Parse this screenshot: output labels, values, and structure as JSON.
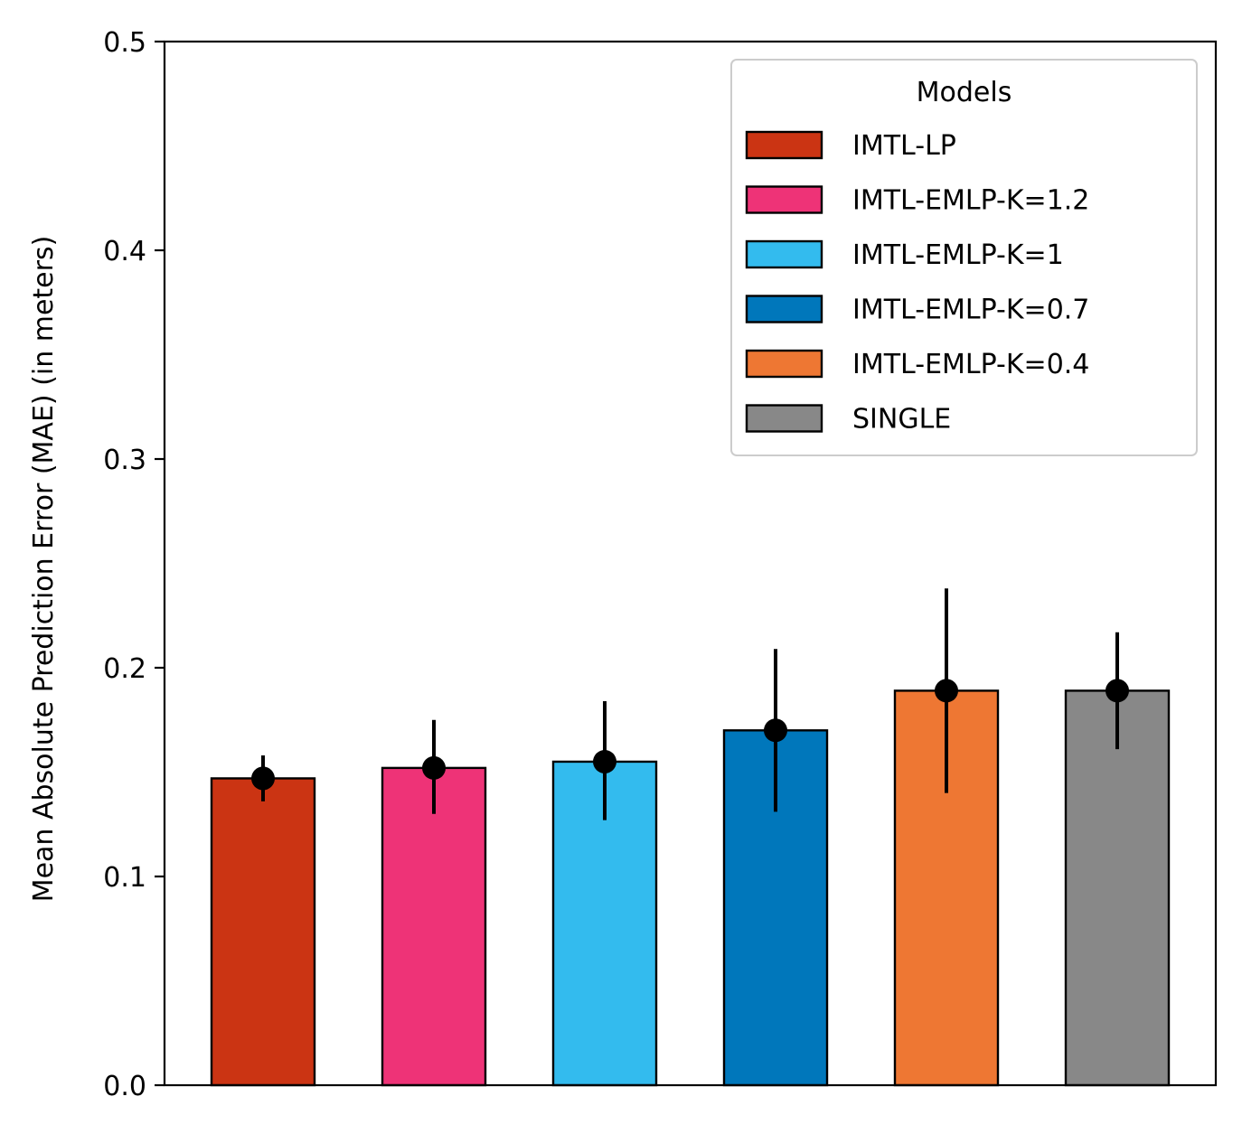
{
  "chart_data": {
    "type": "bar",
    "title": "",
    "xlabel": "",
    "ylabel": "Mean Absolute Prediction Error (MAE) (in meters)",
    "ylim": [
      0,
      0.5
    ],
    "yticks": [
      0.0,
      0.1,
      0.2,
      0.3,
      0.4,
      0.5
    ],
    "ytick_labels": [
      "0.0",
      "0.1",
      "0.2",
      "0.3",
      "0.4",
      "0.5"
    ],
    "grid": false,
    "legend": {
      "title": "Models",
      "position": "top-right"
    },
    "series": [
      {
        "name": "IMTL-LP",
        "value": 0.147,
        "err_low": 0.136,
        "err_high": 0.158,
        "color": "#cb3413"
      },
      {
        "name": "IMTL-EMLP-K=1.2",
        "value": 0.152,
        "err_low": 0.13,
        "err_high": 0.175,
        "color": "#ee3377"
      },
      {
        "name": "IMTL-EMLP-K=1",
        "value": 0.155,
        "err_low": 0.127,
        "err_high": 0.184,
        "color": "#33bbee"
      },
      {
        "name": "IMTL-EMLP-K=0.7",
        "value": 0.17,
        "err_low": 0.131,
        "err_high": 0.209,
        "color": "#0077bb"
      },
      {
        "name": "IMTL-EMLP-K=0.4",
        "value": 0.189,
        "err_low": 0.14,
        "err_high": 0.238,
        "color": "#ee7733"
      },
      {
        "name": "SINGLE",
        "value": 0.189,
        "err_low": 0.161,
        "err_high": 0.217,
        "color": "#888888"
      }
    ]
  }
}
